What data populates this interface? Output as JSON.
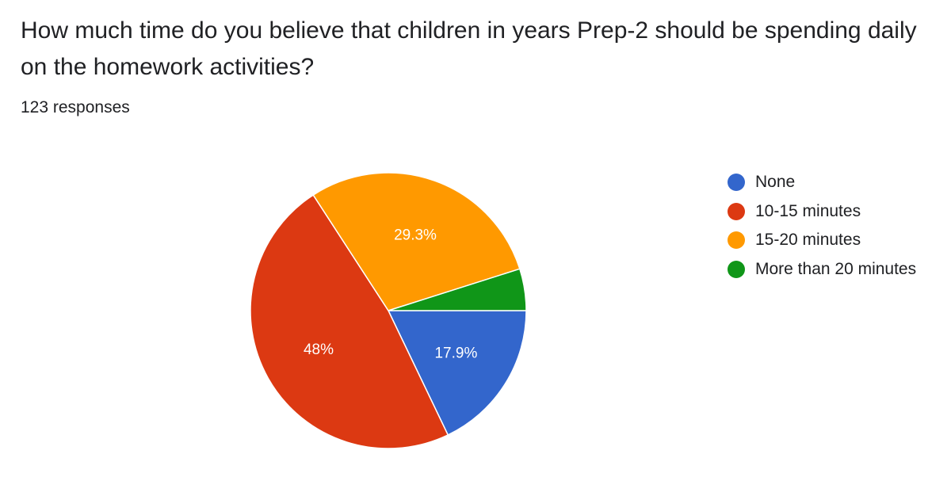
{
  "question": "How much time do you believe that children in years Prep-2 should be spending daily on the homework activities?",
  "responses_label": "123 responses",
  "chart_data": {
    "type": "pie",
    "title": "",
    "series": [
      {
        "categories": [
          "None",
          "10-15 minutes",
          "15-20 minutes",
          "More than 20 minutes"
        ],
        "values": [
          17.9,
          48,
          29.3,
          4.9
        ],
        "labels": [
          "17.9%",
          "48%",
          "29.3%",
          ""
        ],
        "colors": [
          "#3366cc",
          "#dc3912",
          "#ff9900",
          "#109618"
        ]
      }
    ],
    "legend_position": "right"
  }
}
